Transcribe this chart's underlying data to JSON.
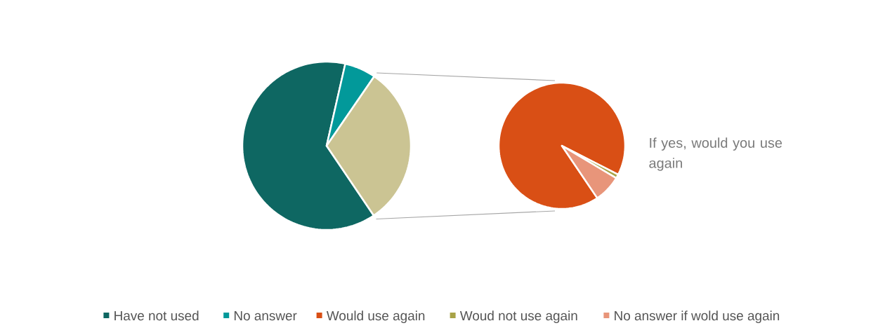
{
  "chart_data": [
    {
      "type": "pie",
      "categories": [
        "Have not used",
        "No answer",
        null
      ],
      "values": [
        63,
        6,
        31
      ],
      "colors": [
        "#0e6762",
        "#02999a",
        "#cbc493"
      ],
      "legend": "bottom"
    },
    {
      "type": "pie",
      "title": "If yes, would you use again",
      "categories": [
        "Would use again",
        "Woud not use again",
        "No answer if wold use again"
      ],
      "values": [
        92,
        1,
        7
      ],
      "colors": [
        "#d94f15",
        "#a8a347",
        "#e8957a"
      ],
      "legend": "bottom"
    }
  ]
}
